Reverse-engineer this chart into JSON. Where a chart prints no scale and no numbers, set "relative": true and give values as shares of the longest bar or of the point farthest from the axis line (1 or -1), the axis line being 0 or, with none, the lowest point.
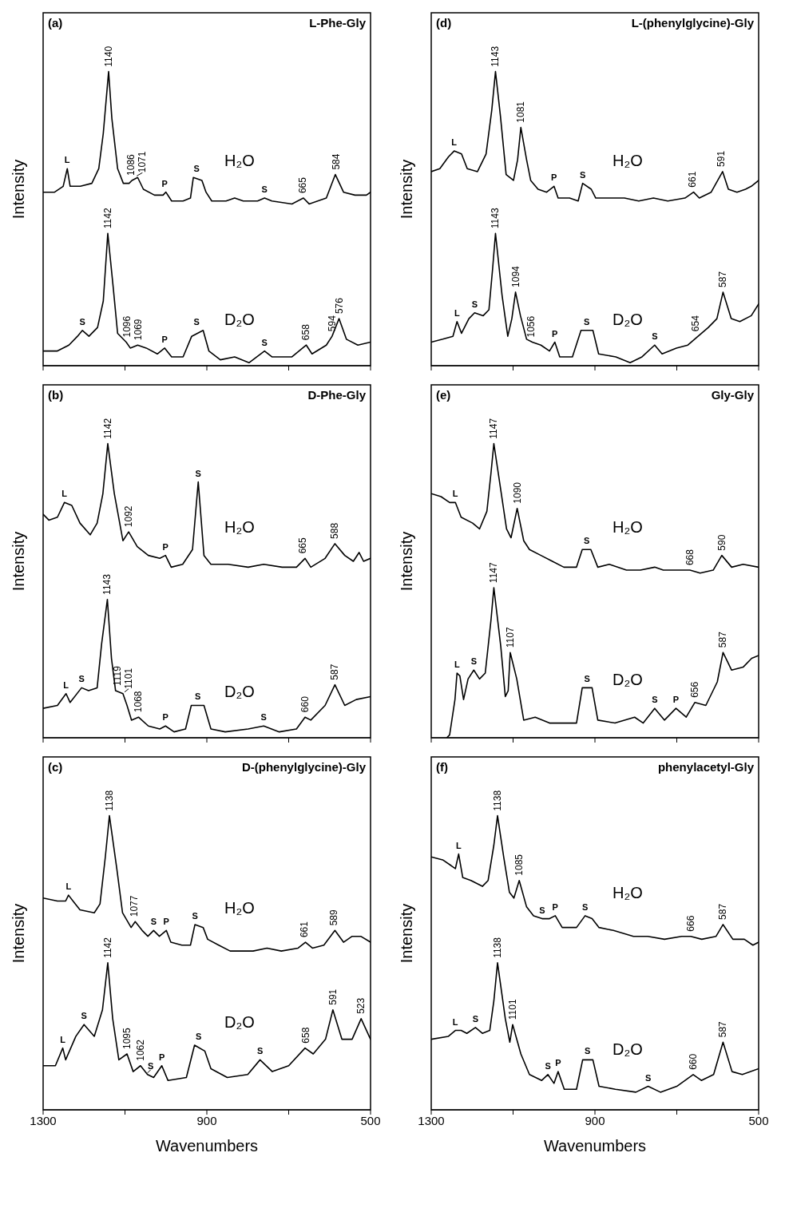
{
  "chart_data": [
    {
      "type": "line",
      "title": "L-Phe-Gly",
      "ylabel": "Intensity",
      "relative": true,
      "xlim": [
        1300,
        500
      ],
      "xticks": [
        {
          "value": 1300,
          "label": null
        },
        {
          "value": 1100,
          "label": null
        },
        {
          "value": 900,
          "label": null
        },
        {
          "value": 700,
          "label": null
        },
        {
          "value": 500,
          "label": null
        }
      ],
      "tick_labels": false,
      "series": [
        {
          "name": "H₂O",
          "color": "#000000",
          "x": [
            1300,
            1272,
            1251,
            1241,
            1234,
            1209,
            1181,
            1164,
            1153,
            1140,
            1132,
            1118,
            1104,
            1090,
            1083,
            1069,
            1055,
            1028,
            1007,
            1000,
            986,
            958,
            940,
            933,
            912,
            902,
            888,
            853,
            832,
            811,
            776,
            759,
            741,
            692,
            664,
            650,
            608,
            586,
            566,
            538,
            510,
            500
          ],
          "values": [
            0.59,
            0.59,
            0.61,
            0.67,
            0.61,
            0.61,
            0.62,
            0.67,
            0.79,
            1.0,
            0.84,
            0.67,
            0.62,
            0.62,
            0.63,
            0.64,
            0.6,
            0.58,
            0.58,
            0.59,
            0.56,
            0.56,
            0.57,
            0.64,
            0.63,
            0.59,
            0.56,
            0.56,
            0.57,
            0.56,
            0.56,
            0.57,
            0.56,
            0.55,
            0.57,
            0.55,
            0.57,
            0.65,
            0.59,
            0.58,
            0.58,
            0.59
          ]
        },
        {
          "name": "D₂O",
          "color": "#000000",
          "x": [
            1300,
            1265,
            1237,
            1216,
            1204,
            1188,
            1167,
            1153,
            1142,
            1129,
            1118,
            1097,
            1087,
            1069,
            1048,
            1021,
            1003,
            986,
            958,
            937,
            909,
            895,
            867,
            832,
            797,
            759,
            741,
            692,
            657,
            643,
            608,
            594,
            577,
            559,
            531,
            500
          ],
          "values": [
            0.05,
            0.05,
            0.07,
            0.1,
            0.12,
            0.1,
            0.13,
            0.22,
            0.45,
            0.27,
            0.11,
            0.08,
            0.06,
            0.07,
            0.06,
            0.04,
            0.06,
            0.03,
            0.03,
            0.1,
            0.12,
            0.05,
            0.02,
            0.03,
            0.01,
            0.05,
            0.03,
            0.03,
            0.07,
            0.04,
            0.07,
            0.1,
            0.16,
            0.09,
            0.07,
            0.08
          ]
        }
      ],
      "annotations": [
        "(a)",
        {
          "text": "1140",
          "x": 1140,
          "y": 1.0
        },
        {
          "text": "1086",
          "x": 1086,
          "y": 0.63
        },
        {
          "text": "1071",
          "x": 1071,
          "y": 0.64
        },
        {
          "text": "665",
          "x": 665,
          "y": 0.57
        },
        {
          "text": "584",
          "x": 584,
          "y": 0.65
        },
        {
          "text": "L",
          "x": 1241,
          "y": 0.67
        },
        {
          "text": "P",
          "x": 1003,
          "y": 0.59
        },
        {
          "text": "S",
          "x": 925,
          "y": 0.64
        },
        {
          "text": "S",
          "x": 759,
          "y": 0.57
        },
        {
          "text": "1142",
          "x": 1142,
          "y": 0.45
        },
        {
          "text": "1096",
          "x": 1096,
          "y": 0.08
        },
        {
          "text": "1069",
          "x": 1069,
          "y": 0.07
        },
        {
          "text": "658",
          "x": 658,
          "y": 0.07
        },
        {
          "text": "594",
          "x": 594,
          "y": 0.1
        },
        {
          "text": "576",
          "x": 576,
          "y": 0.16
        },
        {
          "text": "S",
          "x": 1204,
          "y": 0.12
        },
        {
          "text": "P",
          "x": 1003,
          "y": 0.06
        },
        {
          "text": "S",
          "x": 925,
          "y": 0.12
        },
        {
          "text": "S",
          "x": 759,
          "y": 0.05
        }
      ]
    },
    {
      "type": "line",
      "title": "D-Phe-Gly",
      "ylabel": "Intensity",
      "relative": true,
      "xlim": [
        1300,
        500
      ],
      "xticks": [
        {
          "value": 1300,
          "label": null
        },
        {
          "value": 1100,
          "label": null
        },
        {
          "value": 900,
          "label": null
        },
        {
          "value": 700,
          "label": null
        },
        {
          "value": 500,
          "label": null
        }
      ],
      "tick_labels": false,
      "series": [
        {
          "name": "H₂O",
          "color": "#000000",
          "x": [
            1300,
            1286,
            1265,
            1248,
            1230,
            1210,
            1185,
            1168,
            1154,
            1142,
            1126,
            1105,
            1091,
            1070,
            1043,
            1015,
            1001,
            987,
            959,
            935,
            921,
            907,
            890,
            848,
            799,
            761,
            716,
            681,
            660,
            646,
            611,
            587,
            563,
            542,
            528,
            517,
            500
          ],
          "values": [
            0.76,
            0.74,
            0.75,
            0.8,
            0.79,
            0.73,
            0.69,
            0.73,
            0.83,
            1.0,
            0.83,
            0.67,
            0.7,
            0.65,
            0.62,
            0.61,
            0.62,
            0.58,
            0.59,
            0.64,
            0.87,
            0.62,
            0.59,
            0.59,
            0.58,
            0.59,
            0.58,
            0.58,
            0.61,
            0.58,
            0.61,
            0.66,
            0.62,
            0.6,
            0.63,
            0.6,
            0.61
          ]
        },
        {
          "name": "D₂O",
          "color": "#000000",
          "x": [
            1300,
            1265,
            1244,
            1234,
            1206,
            1189,
            1168,
            1157,
            1143,
            1133,
            1123,
            1105,
            1095,
            1084,
            1067,
            1043,
            1015,
            1001,
            980,
            952,
            938,
            907,
            890,
            855,
            799,
            761,
            723,
            681,
            660,
            646,
            611,
            587,
            563,
            535,
            500
          ],
          "values": [
            0.1,
            0.11,
            0.15,
            0.12,
            0.17,
            0.16,
            0.17,
            0.32,
            0.47,
            0.27,
            0.16,
            0.15,
            0.11,
            0.06,
            0.07,
            0.04,
            0.03,
            0.04,
            0.02,
            0.03,
            0.11,
            0.11,
            0.03,
            0.02,
            0.03,
            0.04,
            0.02,
            0.03,
            0.07,
            0.06,
            0.11,
            0.18,
            0.11,
            0.13,
            0.14
          ]
        }
      ],
      "annotations": [
        "(b)",
        {
          "text": "1142",
          "x": 1142,
          "y": 1.0
        },
        {
          "text": "1092",
          "x": 1092,
          "y": 0.7
        },
        {
          "text": "665",
          "x": 665,
          "y": 0.61
        },
        {
          "text": "588",
          "x": 588,
          "y": 0.66
        },
        {
          "text": "L",
          "x": 1248,
          "y": 0.8
        },
        {
          "text": "P",
          "x": 1001,
          "y": 0.62
        },
        {
          "text": "S",
          "x": 921,
          "y": 0.87
        },
        {
          "text": "1143",
          "x": 1143,
          "y": 0.47
        },
        {
          "text": "1119",
          "x": 1119,
          "y": 0.16
        },
        {
          "text": "1101",
          "x": 1101,
          "y": 0.15
        },
        {
          "text": "1068",
          "x": 1068,
          "y": 0.07
        },
        {
          "text": "660",
          "x": 660,
          "y": 0.07
        },
        {
          "text": "587",
          "x": 587,
          "y": 0.18
        },
        {
          "text": "L",
          "x": 1244,
          "y": 0.15
        },
        {
          "text": "S",
          "x": 1206,
          "y": 0.17
        },
        {
          "text": "P",
          "x": 1001,
          "y": 0.04
        },
        {
          "text": "S",
          "x": 922,
          "y": 0.11
        },
        {
          "text": "S",
          "x": 761,
          "y": 0.04
        }
      ]
    },
    {
      "type": "line",
      "title": "D-(phenylglycine)-Gly",
      "xlabel": "Wavenumbers",
      "ylabel": "Intensity",
      "relative": true,
      "xlim": [
        1300,
        500
      ],
      "xticks": [
        1300,
        {
          "value": 1100,
          "label": null
        },
        900,
        {
          "value": 700,
          "label": null
        },
        500
      ],
      "tick_labels": "x",
      "series": [
        {
          "name": "H₂O",
          "color": "#000000",
          "x": [
            1300,
            1265,
            1245,
            1238,
            1227,
            1210,
            1175,
            1161,
            1148,
            1138,
            1120,
            1106,
            1085,
            1075,
            1058,
            1044,
            1030,
            1016,
            999,
            988,
            961,
            940,
            929,
            909,
            898,
            871,
            843,
            787,
            753,
            718,
            677,
            659,
            642,
            614,
            587,
            566,
            545,
            524,
            500
          ],
          "values": [
            0.72,
            0.71,
            0.71,
            0.73,
            0.71,
            0.68,
            0.67,
            0.7,
            0.86,
            1.0,
            0.82,
            0.67,
            0.62,
            0.64,
            0.61,
            0.59,
            0.61,
            0.59,
            0.61,
            0.57,
            0.56,
            0.56,
            0.63,
            0.62,
            0.58,
            0.56,
            0.54,
            0.54,
            0.55,
            0.54,
            0.55,
            0.57,
            0.55,
            0.56,
            0.61,
            0.57,
            0.59,
            0.59,
            0.57
          ]
        },
        {
          "name": "D₂O",
          "color": "#000000",
          "x": [
            1300,
            1270,
            1252,
            1245,
            1220,
            1200,
            1175,
            1155,
            1142,
            1130,
            1115,
            1095,
            1080,
            1062,
            1045,
            1030,
            1010,
            995,
            950,
            930,
            905,
            890,
            850,
            800,
            770,
            740,
            700,
            660,
            640,
            610,
            592,
            570,
            545,
            523,
            500
          ],
          "values": [
            0.15,
            0.15,
            0.21,
            0.17,
            0.25,
            0.29,
            0.25,
            0.34,
            0.5,
            0.31,
            0.17,
            0.19,
            0.13,
            0.15,
            0.12,
            0.11,
            0.15,
            0.1,
            0.11,
            0.22,
            0.2,
            0.14,
            0.11,
            0.12,
            0.17,
            0.13,
            0.15,
            0.21,
            0.19,
            0.24,
            0.34,
            0.24,
            0.24,
            0.31,
            0.24
          ]
        }
      ],
      "annotations": [
        "(c)",
        {
          "text": "1138",
          "x": 1138,
          "y": 1.0
        },
        {
          "text": "1077",
          "x": 1077,
          "y": 0.64
        },
        {
          "text": "661",
          "x": 661,
          "y": 0.57
        },
        {
          "text": "589",
          "x": 589,
          "y": 0.61
        },
        {
          "text": "L",
          "x": 1238,
          "y": 0.73
        },
        {
          "text": "S",
          "x": 1030,
          "y": 0.61
        },
        {
          "text": "P",
          "x": 999,
          "y": 0.61
        },
        {
          "text": "S",
          "x": 929,
          "y": 0.63
        },
        {
          "text": "1142",
          "x": 1142,
          "y": 0.5
        },
        {
          "text": "1095",
          "x": 1095,
          "y": 0.19
        },
        {
          "text": "1062",
          "x": 1062,
          "y": 0.15
        },
        {
          "text": "658",
          "x": 658,
          "y": 0.21
        },
        {
          "text": "591",
          "x": 591,
          "y": 0.34
        },
        {
          "text": "523",
          "x": 523,
          "y": 0.31
        },
        {
          "text": "L",
          "x": 1252,
          "y": 0.21
        },
        {
          "text": "S",
          "x": 1200,
          "y": 0.29
        },
        {
          "text": "S",
          "x": 1045,
          "y": 0.12
        },
        {
          "text": "P",
          "x": 1010,
          "y": 0.15
        },
        {
          "text": "S",
          "x": 920,
          "y": 0.22
        },
        {
          "text": "S",
          "x": 770,
          "y": 0.17
        }
      ]
    },
    {
      "type": "line",
      "title": "L-(phenylglycine)-Gly",
      "ylabel": "Intensity",
      "relative": true,
      "xlim": [
        1300,
        500
      ],
      "xticks": [
        {
          "value": 1300,
          "label": null
        },
        {
          "value": 1100,
          "label": null
        },
        {
          "value": 900,
          "label": null
        },
        {
          "value": 700,
          "label": null
        },
        {
          "value": 500,
          "label": null
        }
      ],
      "tick_labels": false,
      "series": [
        {
          "name": "H₂O",
          "color": "#000000",
          "x": [
            1300,
            1279,
            1258,
            1244,
            1226,
            1212,
            1187,
            1166,
            1152,
            1143,
            1131,
            1117,
            1099,
            1089,
            1081,
            1067,
            1057,
            1039,
            1018,
            1000,
            990,
            962,
            941,
            930,
            909,
            898,
            863,
            828,
            793,
            757,
            722,
            680,
            659,
            645,
            616,
            588,
            574,
            553,
            532,
            518,
            500
          ],
          "values": [
            0.66,
            0.67,
            0.71,
            0.73,
            0.72,
            0.67,
            0.66,
            0.72,
            0.87,
            1.0,
            0.85,
            0.65,
            0.63,
            0.7,
            0.81,
            0.7,
            0.63,
            0.6,
            0.59,
            0.61,
            0.57,
            0.57,
            0.56,
            0.62,
            0.6,
            0.57,
            0.57,
            0.57,
            0.56,
            0.57,
            0.56,
            0.57,
            0.59,
            0.57,
            0.59,
            0.66,
            0.6,
            0.59,
            0.6,
            0.61,
            0.63
          ]
        },
        {
          "name": "D₂O",
          "color": "#000000",
          "x": [
            1300,
            1272,
            1247,
            1237,
            1226,
            1208,
            1194,
            1173,
            1159,
            1150,
            1143,
            1127,
            1113,
            1103,
            1094,
            1082,
            1067,
            1053,
            1032,
            1011,
            998,
            986,
            955,
            934,
            905,
            891,
            849,
            814,
            785,
            754,
            736,
            701,
            673,
            648,
            623,
            602,
            587,
            567,
            546,
            518,
            500
          ],
          "values": [
            0.08,
            0.09,
            0.1,
            0.15,
            0.11,
            0.16,
            0.18,
            0.17,
            0.19,
            0.33,
            0.45,
            0.24,
            0.1,
            0.16,
            0.25,
            0.17,
            0.09,
            0.08,
            0.07,
            0.05,
            0.08,
            0.03,
            0.03,
            0.12,
            0.12,
            0.04,
            0.03,
            0.01,
            0.03,
            0.07,
            0.04,
            0.06,
            0.07,
            0.1,
            0.13,
            0.16,
            0.25,
            0.16,
            0.15,
            0.17,
            0.21
          ]
        }
      ],
      "annotations": [
        "(d)",
        {
          "text": "1143",
          "x": 1143,
          "y": 1.0
        },
        {
          "text": "1081",
          "x": 1081,
          "y": 0.81
        },
        {
          "text": "661",
          "x": 661,
          "y": 0.59
        },
        {
          "text": "591",
          "x": 591,
          "y": 0.66
        },
        {
          "text": "L",
          "x": 1244,
          "y": 0.73
        },
        {
          "text": "P",
          "x": 1000,
          "y": 0.61
        },
        {
          "text": "S",
          "x": 930,
          "y": 0.62
        },
        {
          "text": "1143",
          "x": 1143,
          "y": 0.45
        },
        {
          "text": "1094",
          "x": 1094,
          "y": 0.25
        },
        {
          "text": "1056",
          "x": 1056,
          "y": 0.08
        },
        {
          "text": "654",
          "x": 654,
          "y": 0.1
        },
        {
          "text": "587",
          "x": 587,
          "y": 0.25
        },
        {
          "text": "L",
          "x": 1237,
          "y": 0.15
        },
        {
          "text": "S",
          "x": 1194,
          "y": 0.18
        },
        {
          "text": "P",
          "x": 998,
          "y": 0.08
        },
        {
          "text": "S",
          "x": 920,
          "y": 0.12
        },
        {
          "text": "S",
          "x": 754,
          "y": 0.07
        }
      ]
    },
    {
      "type": "line",
      "title": "Gly-Gly",
      "ylabel": "Intensity",
      "relative": true,
      "xlim": [
        1300,
        500
      ],
      "xticks": [
        {
          "value": 1300,
          "label": null
        },
        {
          "value": 1100,
          "label": null
        },
        {
          "value": 900,
          "label": null
        },
        {
          "value": 700,
          "label": null
        },
        {
          "value": 500,
          "label": null
        }
      ],
      "tick_labels": false,
      "series": [
        {
          "name": "H₂O",
          "color": "#000000",
          "x": [
            1300,
            1276,
            1255,
            1241,
            1227,
            1199,
            1182,
            1164,
            1154,
            1147,
            1133,
            1116,
            1105,
            1090,
            1074,
            1060,
            1032,
            1004,
            976,
            945,
            931,
            910,
            893,
            865,
            823,
            789,
            754,
            733,
            698,
            668,
            643,
            611,
            590,
            566,
            538,
            500
          ],
          "values": [
            0.83,
            0.82,
            0.8,
            0.8,
            0.75,
            0.73,
            0.71,
            0.77,
            0.9,
            1.0,
            0.87,
            0.71,
            0.68,
            0.78,
            0.67,
            0.64,
            0.62,
            0.6,
            0.58,
            0.58,
            0.64,
            0.64,
            0.58,
            0.59,
            0.57,
            0.57,
            0.58,
            0.57,
            0.57,
            0.57,
            0.56,
            0.57,
            0.62,
            0.58,
            0.59,
            0.58
          ]
        },
        {
          "name": "D₂O",
          "color": "#000000",
          "x": [
            1262,
            1255,
            1242,
            1237,
            1230,
            1221,
            1210,
            1196,
            1182,
            1168,
            1154,
            1147,
            1130,
            1119,
            1112,
            1107,
            1091,
            1074,
            1046,
            1011,
            976,
            945,
            931,
            907,
            893,
            851,
            803,
            782,
            754,
            730,
            702,
            677,
            656,
            629,
            601,
            587,
            566,
            538,
            517,
            500
          ],
          "values": [
            0.0,
            0.01,
            0.13,
            0.22,
            0.21,
            0.13,
            0.2,
            0.23,
            0.2,
            0.22,
            0.4,
            0.51,
            0.31,
            0.14,
            0.16,
            0.29,
            0.2,
            0.06,
            0.07,
            0.05,
            0.05,
            0.05,
            0.17,
            0.17,
            0.06,
            0.05,
            0.07,
            0.05,
            0.1,
            0.06,
            0.1,
            0.07,
            0.12,
            0.11,
            0.19,
            0.29,
            0.23,
            0.24,
            0.27,
            0.28
          ]
        }
      ],
      "annotations": [
        "(e)",
        {
          "text": "1147",
          "x": 1147,
          "y": 1.0
        },
        {
          "text": "1090",
          "x": 1090,
          "y": 0.78
        },
        {
          "text": "668",
          "x": 668,
          "y": 0.57
        },
        {
          "text": "590",
          "x": 590,
          "y": 0.62
        },
        {
          "text": "L",
          "x": 1241,
          "y": 0.8
        },
        {
          "text": "S",
          "x": 920,
          "y": 0.64
        },
        {
          "text": "1147",
          "x": 1147,
          "y": 0.51
        },
        {
          "text": "1107",
          "x": 1107,
          "y": 0.29
        },
        {
          "text": "656",
          "x": 656,
          "y": 0.12
        },
        {
          "text": "587",
          "x": 587,
          "y": 0.29
        },
        {
          "text": "L",
          "x": 1237,
          "y": 0.22
        },
        {
          "text": "S",
          "x": 1196,
          "y": 0.23
        },
        {
          "text": "S",
          "x": 919,
          "y": 0.17
        },
        {
          "text": "S",
          "x": 754,
          "y": 0.1
        },
        {
          "text": "P",
          "x": 702,
          "y": 0.1
        }
      ]
    },
    {
      "type": "line",
      "title": "phenylacetyl-Gly",
      "xlabel": "Wavenumbers",
      "ylabel": "Intensity",
      "relative": true,
      "xlim": [
        1300,
        500
      ],
      "xticks": [
        1300,
        {
          "value": 1100,
          "label": null
        },
        900,
        {
          "value": 700,
          "label": null
        },
        500
      ],
      "tick_labels": "x",
      "series": [
        {
          "name": "H₂O",
          "color": "#000000",
          "x": [
            1300,
            1272,
            1251,
            1241,
            1233,
            1223,
            1203,
            1175,
            1161,
            1147,
            1138,
            1123,
            1109,
            1098,
            1085,
            1067,
            1050,
            1029,
            1011,
            997,
            980,
            945,
            924,
            907,
            890,
            855,
            806,
            771,
            730,
            688,
            666,
            639,
            604,
            587,
            563,
            535,
            514,
            500
          ],
          "values": [
            0.86,
            0.85,
            0.83,
            0.82,
            0.87,
            0.79,
            0.78,
            0.76,
            0.78,
            0.9,
            1.0,
            0.86,
            0.74,
            0.72,
            0.78,
            0.69,
            0.66,
            0.65,
            0.65,
            0.66,
            0.62,
            0.62,
            0.66,
            0.65,
            0.62,
            0.61,
            0.59,
            0.59,
            0.58,
            0.59,
            0.59,
            0.58,
            0.59,
            0.63,
            0.58,
            0.58,
            0.56,
            0.57
          ]
        },
        {
          "name": "D₂O",
          "color": "#000000",
          "x": [
            1300,
            1258,
            1241,
            1227,
            1213,
            1192,
            1175,
            1157,
            1147,
            1138,
            1119,
            1108,
            1101,
            1081,
            1060,
            1030,
            1015,
            1000,
            990,
            975,
            945,
            930,
            905,
            890,
            850,
            800,
            770,
            740,
            700,
            660,
            640,
            610,
            587,
            565,
            540,
            500
          ],
          "values": [
            0.24,
            0.25,
            0.27,
            0.27,
            0.26,
            0.28,
            0.26,
            0.27,
            0.37,
            0.5,
            0.31,
            0.23,
            0.29,
            0.19,
            0.12,
            0.1,
            0.12,
            0.09,
            0.13,
            0.07,
            0.07,
            0.17,
            0.17,
            0.08,
            0.07,
            0.06,
            0.08,
            0.06,
            0.08,
            0.12,
            0.1,
            0.12,
            0.23,
            0.13,
            0.12,
            0.14
          ]
        }
      ],
      "annotations": [
        "(f)",
        {
          "text": "1138",
          "x": 1138,
          "y": 1.0
        },
        {
          "text": "1085",
          "x": 1085,
          "y": 0.78
        },
        {
          "text": "666",
          "x": 666,
          "y": 0.59
        },
        {
          "text": "587",
          "x": 587,
          "y": 0.63
        },
        {
          "text": "L",
          "x": 1233,
          "y": 0.87
        },
        {
          "text": "S",
          "x": 1029,
          "y": 0.65
        },
        {
          "text": "P",
          "x": 997,
          "y": 0.66
        },
        {
          "text": "S",
          "x": 924,
          "y": 0.66
        },
        {
          "text": "1138",
          "x": 1138,
          "y": 0.5
        },
        {
          "text": "1101",
          "x": 1101,
          "y": 0.29
        },
        {
          "text": "660",
          "x": 660,
          "y": 0.12
        },
        {
          "text": "587",
          "x": 587,
          "y": 0.23
        },
        {
          "text": "L",
          "x": 1241,
          "y": 0.27
        },
        {
          "text": "S",
          "x": 1192,
          "y": 0.28
        },
        {
          "text": "S",
          "x": 1015,
          "y": 0.12
        },
        {
          "text": "P",
          "x": 990,
          "y": 0.13
        },
        {
          "text": "S",
          "x": 918,
          "y": 0.17
        },
        {
          "text": "S",
          "x": 770,
          "y": 0.08
        }
      ]
    }
  ]
}
